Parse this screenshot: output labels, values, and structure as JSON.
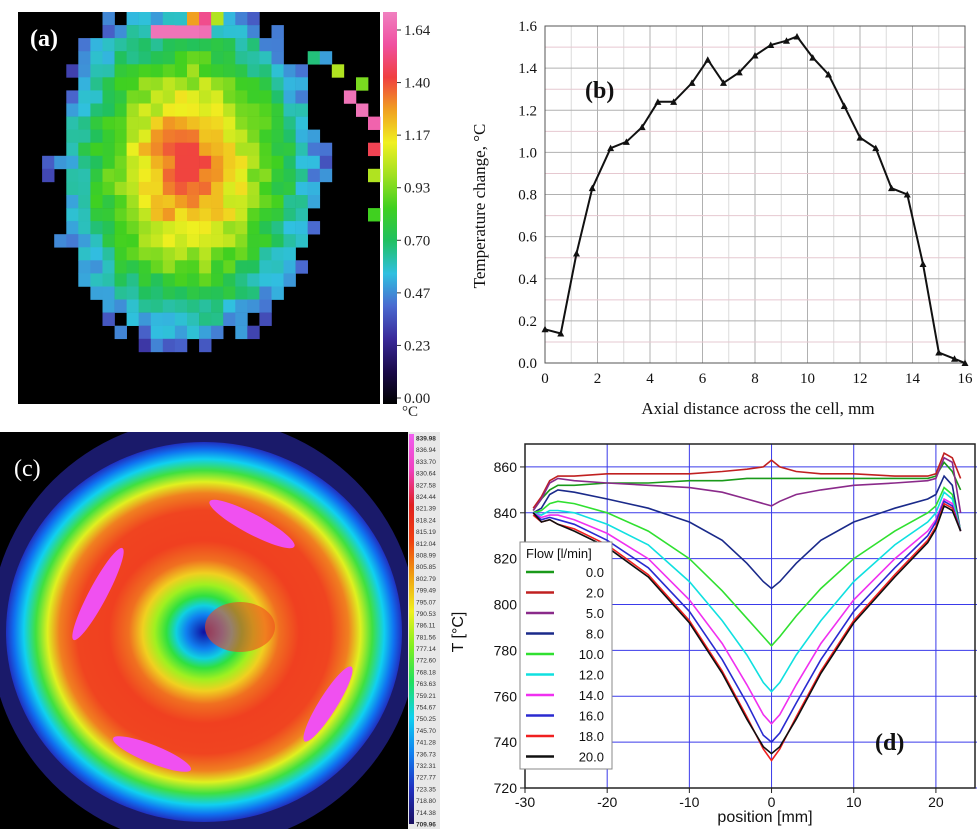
{
  "colors": {
    "heat_scale": [
      "#000000",
      "#1a0a4a",
      "#3a2a9a",
      "#4a6ad0",
      "#30c0e0",
      "#20c060",
      "#40d020",
      "#a0e020",
      "#f0f020",
      "#f0a020",
      "#f04040",
      "#f050a0",
      "#f080c0"
    ],
    "rainbow_scale": [
      "#1a1060",
      "#2030c0",
      "#1080f0",
      "#10d0f0",
      "#20e060",
      "#80f020",
      "#f0f020",
      "#f0a010",
      "#f04010",
      "#e02020",
      "#f040c0",
      "#f060f0"
    ]
  },
  "panel_a": {
    "label": "(a)",
    "colorbar": {
      "ticks": [
        "1.64",
        "1.40",
        "1.17",
        "0.93",
        "0.70",
        "0.47",
        "0.23",
        "0.00"
      ],
      "unit": "°C"
    }
  },
  "panel_c": {
    "label": "(c)",
    "colorbar": {
      "ticks": [
        "839.98",
        "836.94",
        "833.70",
        "830.64",
        "827.58",
        "824.44",
        "821.39",
        "818.24",
        "815.19",
        "812.04",
        "808.99",
        "805.85",
        "802.79",
        "799.49",
        "795.07",
        "790.53",
        "786.11",
        "781.56",
        "777.14",
        "772.60",
        "768.18",
        "763.63",
        "759.21",
        "754.67",
        "750.25",
        "745.70",
        "741.28",
        "736.73",
        "732.31",
        "727.77",
        "723.35",
        "718.80",
        "714.38",
        "709.96"
      ]
    }
  },
  "chart_data": [
    {
      "panel": "b",
      "type": "line",
      "label": "(b)",
      "xlabel": "Axial distance across the cell, mm",
      "ylabel": "Temperature change, °C",
      "xlim": [
        0,
        16
      ],
      "ylim": [
        0,
        1.6
      ],
      "xticks": [
        "0",
        "2",
        "4",
        "6",
        "8",
        "10",
        "12",
        "14",
        "16"
      ],
      "yticks": [
        "0.0",
        "0.2",
        "0.4",
        "0.6",
        "0.8",
        "1.0",
        "1.2",
        "1.4",
        "1.6"
      ],
      "grid": true,
      "series": [
        {
          "x": [
            0,
            0.6,
            1.2,
            1.8,
            2.5,
            3.1,
            3.7,
            4.3,
            4.9,
            5.6,
            6.2,
            6.8,
            7.4,
            8.0,
            8.6,
            9.2,
            9.6,
            10.2,
            10.8,
            11.4,
            12.0,
            12.6,
            13.2,
            13.8,
            14.4,
            15.0,
            15.6,
            16.0
          ],
          "y": [
            0.16,
            0.14,
            0.52,
            0.83,
            1.02,
            1.05,
            1.12,
            1.24,
            1.24,
            1.33,
            1.44,
            1.33,
            1.38,
            1.46,
            1.51,
            1.53,
            1.55,
            1.45,
            1.37,
            1.22,
            1.07,
            1.02,
            0.83,
            0.8,
            0.47,
            0.05,
            0.02,
            0.0
          ]
        }
      ]
    },
    {
      "panel": "d",
      "type": "line",
      "label": "(d)",
      "xlabel": "position [mm]",
      "ylabel": "T [°C]",
      "xlim": [
        -30,
        25
      ],
      "ylim": [
        720,
        870
      ],
      "xticks": [
        "-30",
        "-20",
        "-10",
        "0",
        "10",
        "20"
      ],
      "yticks": [
        "720",
        "740",
        "760",
        "780",
        "800",
        "820",
        "840",
        "860"
      ],
      "grid": true,
      "legend": {
        "title": "Flow [l/min]",
        "position": "left"
      },
      "x": [
        -29,
        -28,
        -27,
        -26,
        -24,
        -20,
        -15,
        -10,
        -6,
        -3,
        -1,
        0,
        1,
        3,
        6,
        10,
        15,
        19,
        20,
        21,
        22,
        23
      ],
      "series": [
        {
          "name": "0.0",
          "color": "#1a9a1a",
          "y": [
            841,
            846,
            850,
            852,
            852,
            853,
            853,
            854,
            854,
            855,
            855,
            855,
            855,
            855,
            855,
            855,
            855,
            855,
            856,
            862,
            858,
            850
          ]
        },
        {
          "name": "2.0",
          "color": "#c02020",
          "y": [
            842,
            847,
            854,
            856,
            856,
            857,
            857,
            857,
            858,
            859,
            860,
            863,
            860,
            858,
            857,
            857,
            856,
            856,
            857,
            866,
            864,
            855
          ]
        },
        {
          "name": "5.0",
          "color": "#8a2a8a",
          "y": [
            841,
            846,
            853,
            855,
            854,
            853,
            852,
            851,
            849,
            846,
            844,
            843,
            845,
            848,
            850,
            852,
            853,
            854,
            855,
            864,
            862,
            840
          ]
        },
        {
          "name": "8.0",
          "color": "#1a2a8a",
          "y": [
            840,
            842,
            848,
            850,
            849,
            846,
            842,
            836,
            828,
            818,
            810,
            807,
            810,
            818,
            828,
            836,
            842,
            846,
            848,
            856,
            852,
            832
          ]
        },
        {
          "name": "10.0",
          "color": "#30e030",
          "y": [
            840,
            841,
            844,
            845,
            844,
            840,
            832,
            820,
            806,
            794,
            786,
            782,
            786,
            795,
            807,
            820,
            832,
            840,
            843,
            851,
            848,
            832
          ]
        },
        {
          "name": "12.0",
          "color": "#10e0e0",
          "y": [
            840,
            839,
            841,
            841,
            840,
            835,
            826,
            810,
            793,
            778,
            766,
            762,
            766,
            778,
            793,
            810,
            826,
            836,
            840,
            849,
            846,
            832
          ]
        },
        {
          "name": "14.0",
          "color": "#f030f0",
          "y": [
            840,
            838,
            839,
            839,
            837,
            831,
            820,
            802,
            783,
            765,
            752,
            748,
            752,
            765,
            783,
            802,
            820,
            832,
            837,
            846,
            844,
            832
          ]
        },
        {
          "name": "16.0",
          "color": "#2a2ad0",
          "y": [
            840,
            837,
            838,
            837,
            835,
            828,
            816,
            797,
            776,
            757,
            743,
            740,
            744,
            757,
            776,
            797,
            816,
            830,
            836,
            845,
            843,
            832
          ]
        },
        {
          "name": "18.0",
          "color": "#f02020",
          "y": [
            839,
            836,
            837,
            835,
            833,
            826,
            813,
            793,
            771,
            751,
            737,
            732,
            737,
            751,
            771,
            793,
            813,
            828,
            834,
            844,
            842,
            832
          ]
        },
        {
          "name": "20.0",
          "color": "#101010",
          "y": [
            840,
            836,
            837,
            835,
            832,
            825,
            812,
            792,
            770,
            750,
            738,
            735,
            738,
            750,
            770,
            792,
            812,
            827,
            833,
            843,
            841,
            832
          ]
        }
      ]
    }
  ]
}
